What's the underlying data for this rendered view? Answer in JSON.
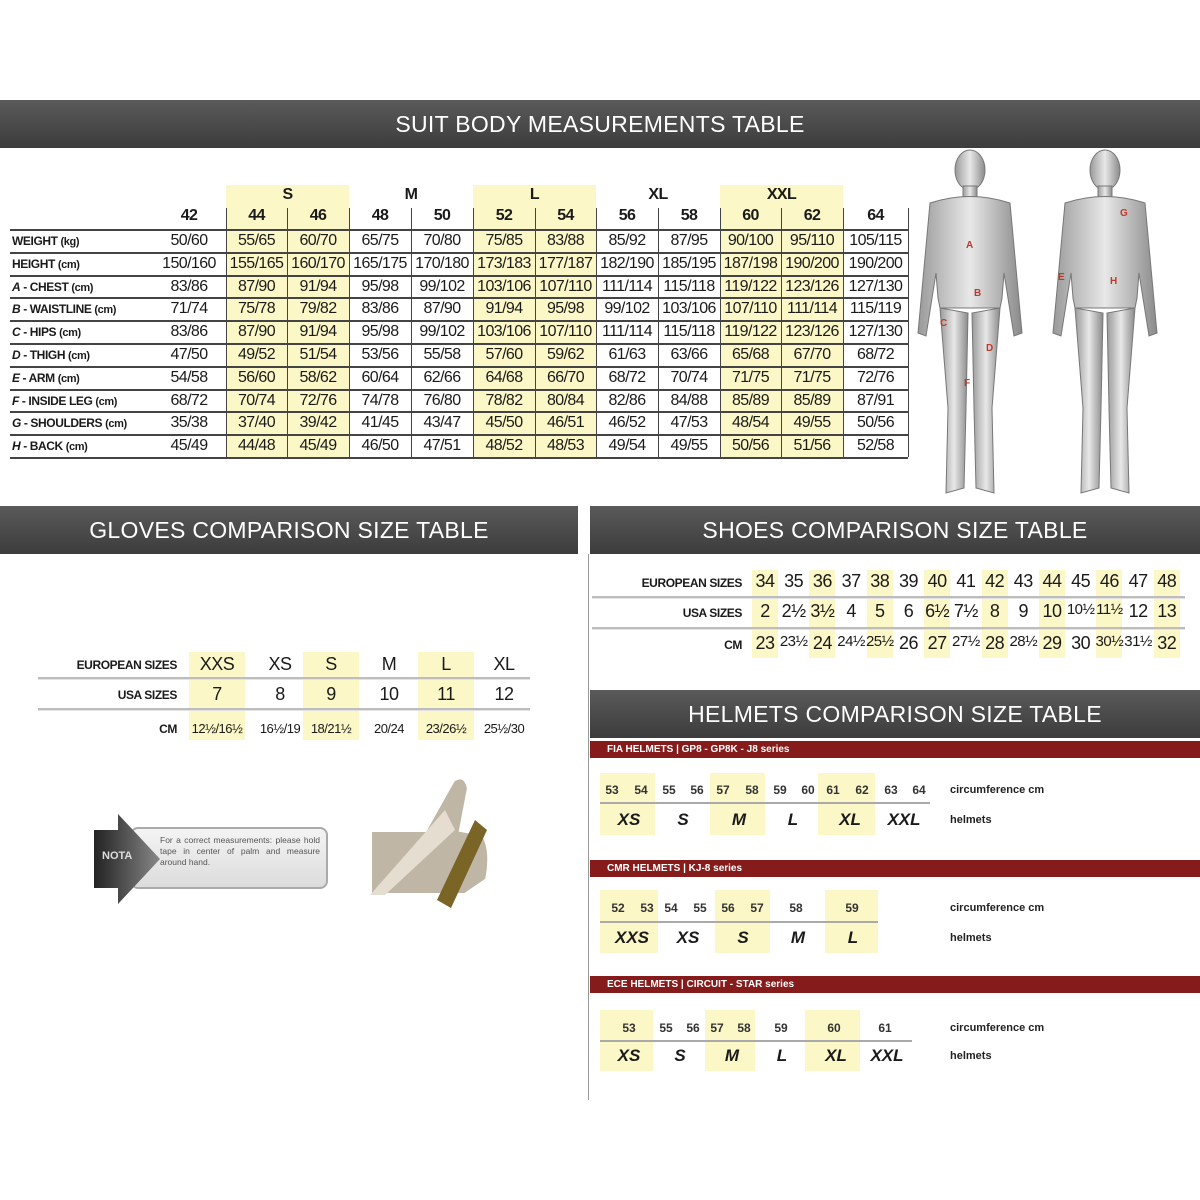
{
  "suit": {
    "title": "SUIT BODY MEASUREMENTS TABLE",
    "groups": [
      {
        "label": "S",
        "highlight": true
      },
      {
        "label": "M",
        "highlight": false
      },
      {
        "label": "L",
        "highlight": true
      },
      {
        "label": "XL",
        "highlight": false
      },
      {
        "label": "XXL",
        "highlight": true
      }
    ],
    "sizes": [
      "42",
      "44",
      "46",
      "48",
      "50",
      "52",
      "54",
      "56",
      "58",
      "60",
      "62",
      "64"
    ],
    "rows": [
      {
        "letter": "",
        "label": "WEIGHT",
        "unit": "(kg)",
        "values": [
          "50/60",
          "55/65",
          "60/70",
          "65/75",
          "70/80",
          "75/85",
          "83/88",
          "85/92",
          "87/95",
          "90/100",
          "95/110",
          "105/115"
        ]
      },
      {
        "letter": "",
        "label": "HEIGHT",
        "unit": "(cm)",
        "values": [
          "150/160",
          "155/165",
          "160/170",
          "165/175",
          "170/180",
          "173/183",
          "177/187",
          "182/190",
          "185/195",
          "187/198",
          "190/200",
          "190/200"
        ]
      },
      {
        "letter": "A",
        "label": "CHEST",
        "unit": "(cm)",
        "values": [
          "83/86",
          "87/90",
          "91/94",
          "95/98",
          "99/102",
          "103/106",
          "107/110",
          "111/114",
          "115/118",
          "119/122",
          "123/126",
          "127/130"
        ]
      },
      {
        "letter": "B",
        "label": "WAISTLINE",
        "unit": "(cm)",
        "values": [
          "71/74",
          "75/78",
          "79/82",
          "83/86",
          "87/90",
          "91/94",
          "95/98",
          "99/102",
          "103/106",
          "107/110",
          "111/114",
          "115/119"
        ]
      },
      {
        "letter": "C",
        "label": "HIPS",
        "unit": "(cm)",
        "values": [
          "83/86",
          "87/90",
          "91/94",
          "95/98",
          "99/102",
          "103/106",
          "107/110",
          "111/114",
          "115/118",
          "119/122",
          "123/126",
          "127/130"
        ]
      },
      {
        "letter": "D",
        "label": "THIGH",
        "unit": "(cm)",
        "values": [
          "47/50",
          "49/52",
          "51/54",
          "53/56",
          "55/58",
          "57/60",
          "59/62",
          "61/63",
          "63/66",
          "65/68",
          "67/70",
          "68/72"
        ]
      },
      {
        "letter": "E",
        "label": "ARM",
        "unit": "(cm)",
        "values": [
          "54/58",
          "56/60",
          "58/62",
          "60/64",
          "62/66",
          "64/68",
          "66/70",
          "68/72",
          "70/74",
          "71/75",
          "71/75",
          "72/76"
        ]
      },
      {
        "letter": "F",
        "label": "INSIDE LEG",
        "unit": "(cm)",
        "values": [
          "68/72",
          "70/74",
          "72/76",
          "74/78",
          "76/80",
          "78/82",
          "80/84",
          "82/86",
          "84/88",
          "85/89",
          "85/89",
          "87/91"
        ]
      },
      {
        "letter": "G",
        "label": "SHOULDERS",
        "unit": "(cm)",
        "values": [
          "35/38",
          "37/40",
          "39/42",
          "41/45",
          "43/47",
          "45/50",
          "46/51",
          "46/52",
          "47/53",
          "48/54",
          "49/55",
          "50/56"
        ]
      },
      {
        "letter": "H",
        "label": "BACK",
        "unit": "(cm)",
        "values": [
          "45/49",
          "44/48",
          "45/49",
          "46/50",
          "47/51",
          "48/52",
          "48/53",
          "49/54",
          "49/55",
          "50/56",
          "51/56",
          "52/58"
        ]
      }
    ],
    "figure_front_letters": [
      "A",
      "B",
      "C",
      "D",
      "F"
    ],
    "figure_back_letters": [
      "G",
      "E",
      "H"
    ]
  },
  "gloves": {
    "title": "GLOVES COMPARISON SIZE TABLE",
    "row_labels": [
      "EUROPEAN SIZES",
      "USA SIZES",
      "CM"
    ],
    "european": [
      "XXS",
      "XS",
      "S",
      "M",
      "L",
      "XL"
    ],
    "usa": [
      "7",
      "8",
      "9",
      "10",
      "11",
      "12"
    ],
    "cm": [
      "12½/16½",
      "16½/19",
      "18/21½",
      "20/24",
      "23/26½",
      "25½/30"
    ],
    "highlight": [
      true,
      false,
      true,
      false,
      true,
      false
    ],
    "note_label": "NOTA",
    "note_text": "For a correct measurements: please hold tape in center of palm and measure around hand."
  },
  "shoes": {
    "title": "SHOES COMPARISON SIZE TABLE",
    "row_labels": [
      "EUROPEAN SIZES",
      "USA SIZES",
      "CM"
    ],
    "european": [
      "34",
      "35",
      "36",
      "37",
      "38",
      "39",
      "40",
      "41",
      "42",
      "43",
      "44",
      "45",
      "46",
      "47",
      "48"
    ],
    "usa": [
      "2",
      "2½",
      "3½",
      "4",
      "5",
      "6",
      "6½",
      "7½",
      "8",
      "9",
      "10",
      "10½",
      "11½",
      "12",
      "13"
    ],
    "cm": [
      "23",
      "23½",
      "24",
      "24½",
      "25½",
      "26",
      "27",
      "27½",
      "28",
      "28½",
      "29",
      "30",
      "30½",
      "31½",
      "32"
    ]
  },
  "helmets": {
    "title": "HELMETS COMPARISON SIZE TABLE",
    "circumference_label": "circumference cm",
    "helmets_label": "helmets",
    "sections": [
      {
        "title": "FIA HELMETS | GP8 - GP8K - J8 series",
        "numbers": [
          "53",
          "54",
          "55",
          "56",
          "57",
          "58",
          "59",
          "60",
          "61",
          "62",
          "63",
          "64"
        ],
        "sizes": [
          "XS",
          "S",
          "M",
          "L",
          "XL",
          "XXL"
        ]
      },
      {
        "title": "CMR HELMETS | KJ-8 series",
        "numbers": [
          "52",
          "53",
          "54",
          "55",
          "56",
          "57",
          "58",
          "59"
        ],
        "sizes": [
          "XXS",
          "XS",
          "S",
          "M",
          "L"
        ]
      },
      {
        "title": "ECE HELMETS | CIRCUIT - STAR series",
        "numbers": [
          "53",
          "55",
          "56",
          "57",
          "58",
          "59",
          "60",
          "61"
        ],
        "sizes": [
          "XS",
          "S",
          "M",
          "L",
          "XL",
          "XXL"
        ]
      }
    ]
  },
  "colors": {
    "header": "#4a4a4a",
    "highlight": "#fbf7c6",
    "helmet_bar": "#861b1b",
    "figure_letters": "#c0392b"
  }
}
